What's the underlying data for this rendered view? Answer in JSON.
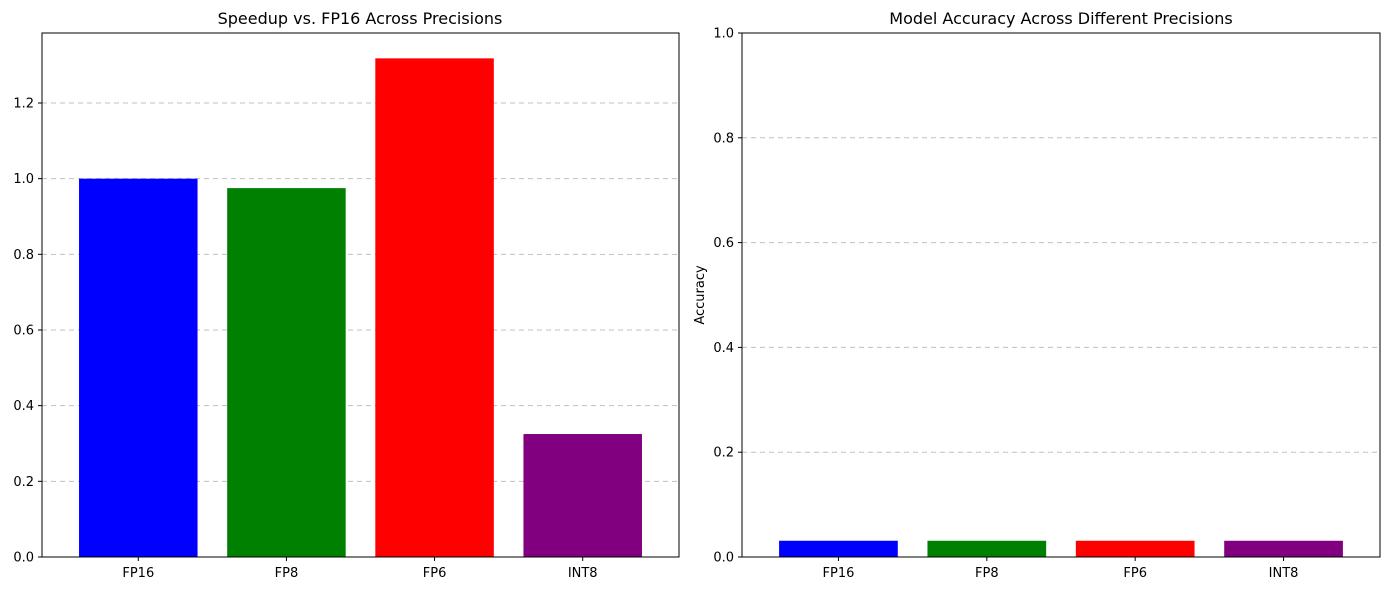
{
  "chart_data": [
    {
      "type": "bar",
      "title": "Speedup vs. FP16 Across Precisions",
      "xlabel": "",
      "ylabel": "",
      "categories": [
        "FP16",
        "FP8",
        "FP6",
        "INT8"
      ],
      "values": [
        1.0,
        0.975,
        1.318,
        0.325
      ],
      "colors": [
        "#0000ff",
        "#008000",
        "#ff0000",
        "#800080"
      ],
      "ylim": [
        0,
        1.385
      ],
      "yticks": [
        0.0,
        0.2,
        0.4,
        0.6,
        0.8,
        1.0,
        1.2
      ],
      "ytick_labels": [
        "0.0",
        "0.2",
        "0.4",
        "0.6",
        "0.8",
        "1.0",
        "1.2"
      ],
      "grid": "y-dashed"
    },
    {
      "type": "bar",
      "title": "Model Accuracy Across Different Precisions",
      "xlabel": "",
      "ylabel": "Accuracy",
      "categories": [
        "FP16",
        "FP8",
        "FP6",
        "INT8"
      ],
      "values": [
        0.031,
        0.031,
        0.031,
        0.031
      ],
      "colors": [
        "#0000ff",
        "#008000",
        "#ff0000",
        "#800080"
      ],
      "ylim": [
        0,
        1.0
      ],
      "yticks": [
        0.0,
        0.2,
        0.4,
        0.6,
        0.8,
        1.0
      ],
      "ytick_labels": [
        "0.0",
        "0.2",
        "0.4",
        "0.6",
        "0.8",
        "1.0"
      ],
      "grid": "y-dashed"
    }
  ]
}
